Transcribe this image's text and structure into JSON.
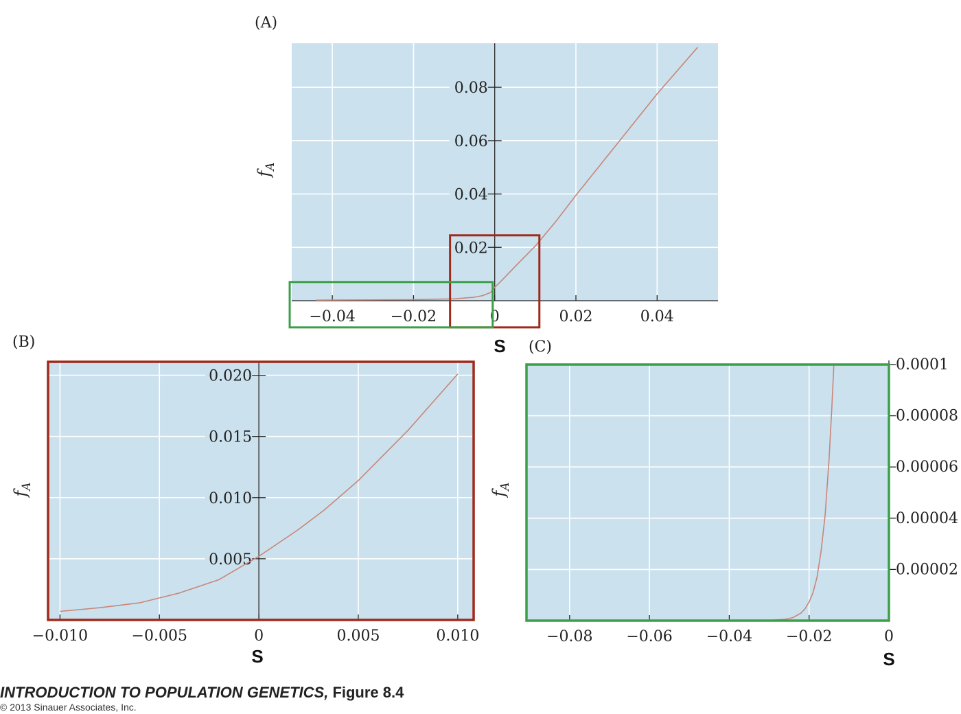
{
  "chart_data": [
    {
      "id": "A",
      "type": "line",
      "panel_label": "(A)",
      "xlabel": "S",
      "ylabel": "f_A",
      "xlim": [
        -0.05,
        0.055
      ],
      "ylim": [
        0,
        0.0965
      ],
      "x_ticks": [
        -0.04,
        -0.02,
        0,
        0.02,
        0.04
      ],
      "x_tick_labels": [
        "−0.04",
        "−0.02",
        "0",
        "0.02",
        "0.04"
      ],
      "y_ticks": [
        0.02,
        0.04,
        0.06,
        0.08
      ],
      "y_tick_labels": [
        "0.02",
        "0.04",
        "0.06",
        "0.08"
      ],
      "y_axis_at_x": 0,
      "grid": true,
      "series": [
        {
          "color": "#c98677",
          "x": [
            -0.044,
            -0.03,
            -0.02,
            -0.01,
            -0.005,
            -0.003,
            -0.001,
            0,
            0.002,
            0.005,
            0.01,
            0.015,
            0.02,
            0.03,
            0.04,
            0.05
          ],
          "y": [
            0.0002,
            0.0003,
            0.0004,
            0.0007,
            0.0013,
            0.0019,
            0.0031,
            0.005,
            0.008,
            0.0128,
            0.0205,
            0.0296,
            0.0395,
            0.0585,
            0.0775,
            0.095
          ]
        }
      ],
      "zoom_boxes": [
        {
          "color": "#a02a1a",
          "xlim": [
            -0.011,
            0.011
          ],
          "ylim": [
            -0.01,
            0.0245
          ]
        },
        {
          "color": "#3aa047",
          "xlim": [
            -0.0505,
            -0.0005
          ],
          "ylim": [
            -0.01,
            0.007
          ]
        }
      ]
    },
    {
      "id": "B",
      "type": "line",
      "panel_label": "(B)",
      "xlabel": "S",
      "ylabel": "f_A",
      "xlim": [
        -0.0106,
        0.0108
      ],
      "ylim": [
        0,
        0.0211
      ],
      "x_ticks": [
        -0.01,
        -0.005,
        0,
        0.005,
        0.01
      ],
      "x_tick_labels": [
        "−0.010",
        "−0.005",
        "0",
        "0.005",
        "0.010"
      ],
      "y_ticks": [
        0.005,
        0.01,
        0.015,
        0.02
      ],
      "y_tick_labels": [
        "0.005",
        "0.010",
        "0.015",
        "0.020"
      ],
      "y_axis_at_x": 0,
      "grid": true,
      "frame_color": "#a02a1a",
      "series": [
        {
          "color": "#c98677",
          "x": [
            -0.01,
            -0.008,
            -0.006,
            -0.004,
            -0.002,
            0,
            0.002,
            0.0033,
            0.005,
            0.0075,
            0.01
          ],
          "y": [
            0.0007,
            0.001,
            0.0014,
            0.0022,
            0.0033,
            0.0052,
            0.0074,
            0.009,
            0.0114,
            0.0155,
            0.0201
          ]
        }
      ]
    },
    {
      "id": "C",
      "type": "line",
      "panel_label": "(C)",
      "xlabel": "S",
      "ylabel": "f_A",
      "xlim": [
        -0.0908,
        0
      ],
      "ylim": [
        0,
        0.0001
      ],
      "x_ticks": [
        -0.08,
        -0.06,
        -0.04,
        -0.02,
        0
      ],
      "x_tick_labels": [
        "−0.08",
        "−0.06",
        "−0.04",
        "−0.02",
        "0"
      ],
      "y_ticks": [
        2e-05,
        4e-05,
        6e-05,
        8e-05,
        0.0001
      ],
      "y_tick_labels": [
        "0.00002",
        "0.00004",
        "0.00006",
        "0.00008",
        "0.0001"
      ],
      "y_axis_side": "right",
      "grid": true,
      "frame_color": "#3aa047",
      "series": [
        {
          "color": "#c98677",
          "x": [
            -0.03,
            -0.026,
            -0.024,
            -0.022,
            -0.021,
            -0.02,
            -0.019,
            -0.018,
            -0.017,
            -0.016,
            -0.015,
            -0.0143,
            -0.0138
          ],
          "y": [
            1e-07,
            5e-07,
            1.2e-06,
            3e-06,
            4.7e-06,
            7.3e-06,
            1.1e-05,
            1.7e-05,
            2.7e-05,
            4.1e-05,
            6.3e-05,
            8.3e-05,
            0.0001
          ]
        }
      ]
    }
  ],
  "footer": {
    "book_title": "INTRODUCTION TO POPULATION GENETICS,",
    "figure_label": "Figure 8.4",
    "copyright": "© 2013 Sinauer Associates, Inc."
  }
}
